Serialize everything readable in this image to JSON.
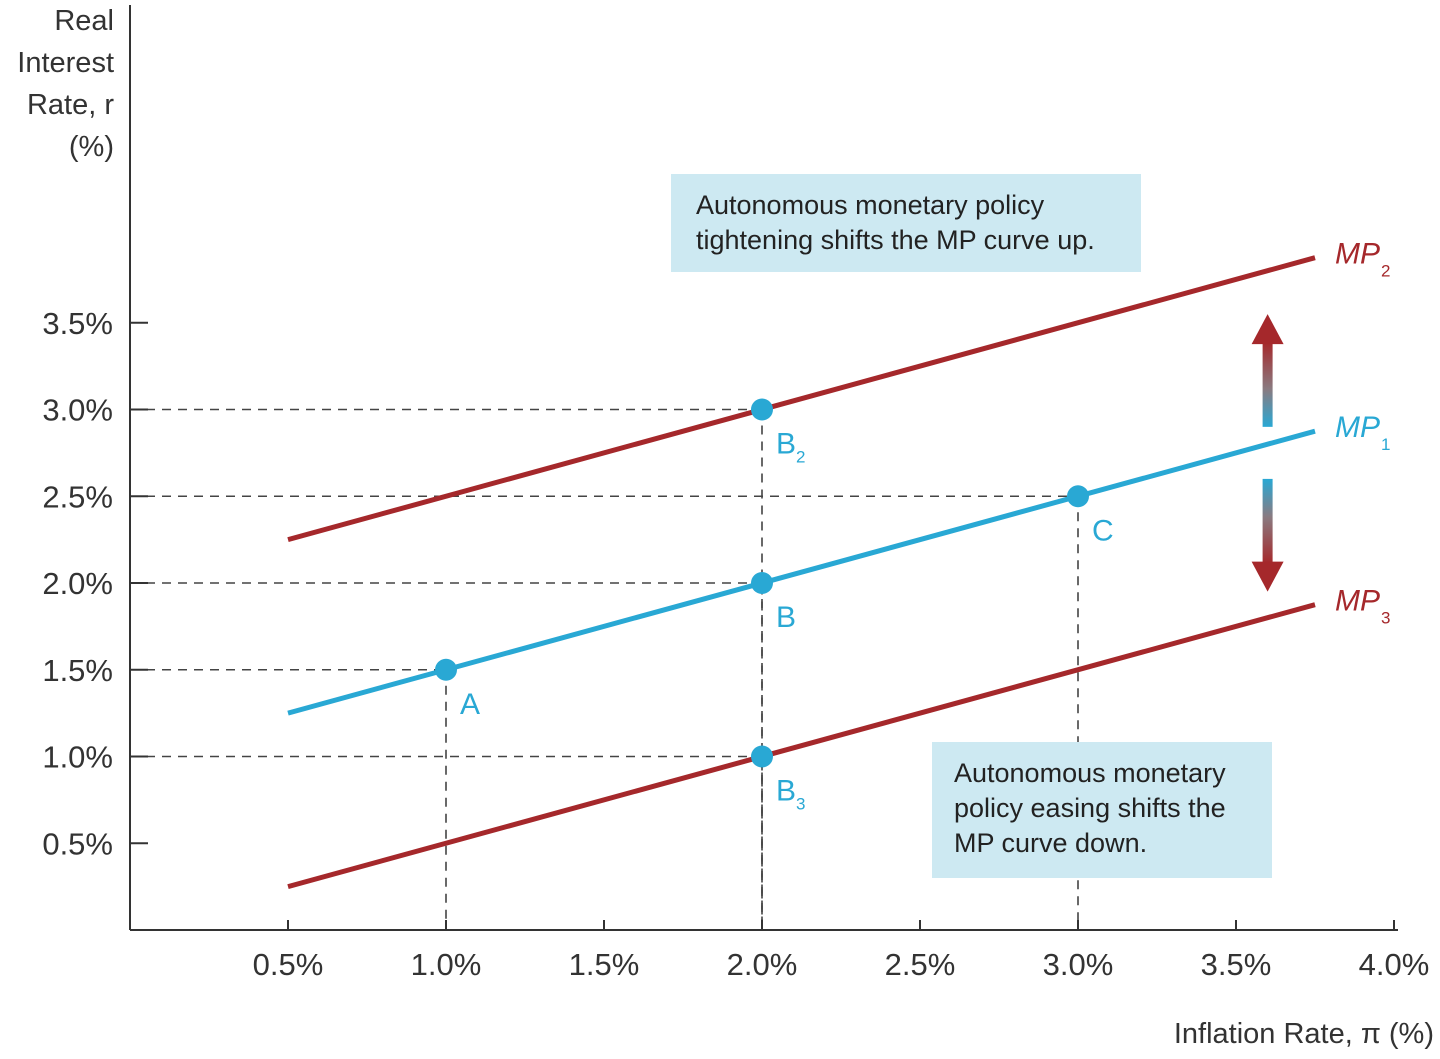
{
  "chart_data": {
    "type": "line",
    "ylabel_lines": [
      "Real",
      "Interest",
      "Rate, r",
      "(%)"
    ],
    "xlabel": "Inflation Rate, π (%)",
    "x_ticks": [
      "0.5%",
      "1.0%",
      "1.5%",
      "2.0%",
      "2.5%",
      "3.0%",
      "3.5%",
      "4.0%"
    ],
    "y_ticks": [
      "0.5%",
      "1.0%",
      "1.5%",
      "2.0%",
      "2.5%",
      "3.0%",
      "3.5%"
    ],
    "xlim": [
      0,
      4.0
    ],
    "ylim": [
      0,
      5.2
    ],
    "series": [
      {
        "name": "MP₂",
        "color": "#a5282b",
        "x": [
          0.5,
          3.75
        ],
        "y": [
          2.25,
          3.875
        ]
      },
      {
        "name": "MP₁",
        "color": "#29a8d4",
        "x": [
          0.5,
          3.75
        ],
        "y": [
          1.25,
          2.875
        ]
      },
      {
        "name": "MP₃",
        "color": "#a5282b",
        "x": [
          0.5,
          3.75
        ],
        "y": [
          0.25,
          1.875
        ]
      }
    ],
    "curve_labels": [
      {
        "main": "MP",
        "sub": "2"
      },
      {
        "main": "MP",
        "sub": "1"
      },
      {
        "main": "MP",
        "sub": "3"
      }
    ],
    "points": [
      {
        "label": "A",
        "sub": "",
        "x": 1.0,
        "y": 1.5
      },
      {
        "label": "B",
        "sub": "",
        "x": 2.0,
        "y": 2.0
      },
      {
        "label": "C",
        "sub": "",
        "x": 3.0,
        "y": 2.5
      },
      {
        "label": "B",
        "sub": "2",
        "x": 2.0,
        "y": 3.0
      },
      {
        "label": "B",
        "sub": "3",
        "x": 2.0,
        "y": 1.0
      }
    ],
    "annotations": [
      {
        "lines": [
          "Autonomous monetary policy",
          "tightening shifts the MP curve up."
        ]
      },
      {
        "lines": [
          "Autonomous monetary",
          "policy easing shifts the",
          "MP curve down."
        ]
      }
    ],
    "shift_arrow": {
      "x": 3.6,
      "from_y": 2.75,
      "up_to": 3.55,
      "down_to": 1.95
    }
  }
}
